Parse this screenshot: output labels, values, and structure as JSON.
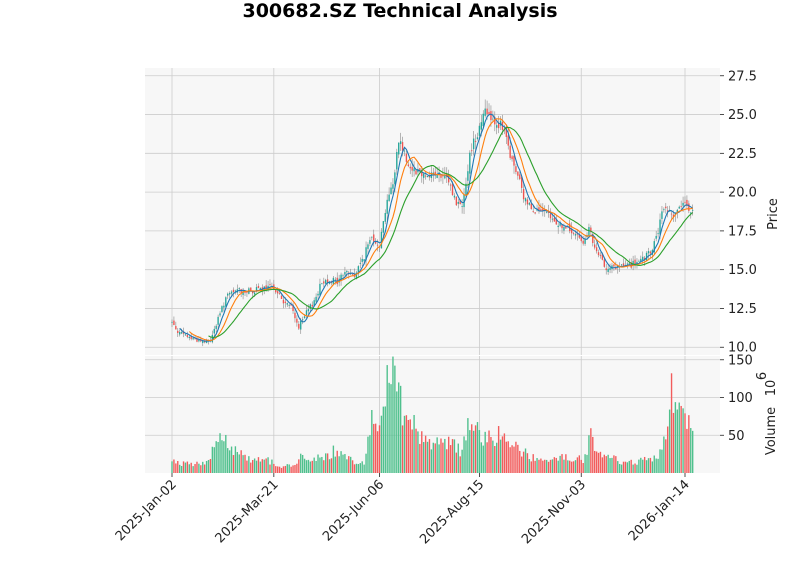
{
  "chart_data": {
    "type": "candlestick",
    "title": "300682.SZ Technical Analysis",
    "colors": {
      "up": "#26a69a",
      "down": "#ef5350",
      "volume_up": "#4fc08d",
      "volume_down": "#f25c5c",
      "ma_short": "#1f77b4",
      "ma_mid": "#ff7f0e",
      "ma_long": "#2ca02c",
      "panel_bg": "#f7f7f7",
      "grid": "#cccccc"
    },
    "price_panel": {
      "ylabel": "Price",
      "ylim": [
        9.5,
        28.0
      ],
      "yticks": [
        10.0,
        12.5,
        15.0,
        17.5,
        20.0,
        22.5,
        25.0,
        27.5
      ],
      "ytick_labels": [
        "10.0",
        "12.5",
        "15.0",
        "17.5",
        "20.0",
        "22.5",
        "25.0",
        "27.5"
      ]
    },
    "volume_panel": {
      "ylabel": "Volume",
      "ylabel_exponent": "6",
      "ylim": [
        0,
        155
      ],
      "yticks": [
        50,
        100,
        150
      ],
      "ytick_labels": [
        "50",
        "100",
        "150"
      ]
    },
    "x_tick_labels": [
      "2025-Jan-02",
      "2025-Mar-21",
      "2025-Jun-06",
      "2025-Aug-15",
      "2025-Nov-03",
      "2026-Jan-14"
    ],
    "x_tick_index": [
      0,
      53,
      108,
      160,
      213,
      267
    ],
    "total_bars": 272,
    "close_keypoints": [
      [
        0,
        11.6
      ],
      [
        4,
        10.9
      ],
      [
        10,
        10.6
      ],
      [
        18,
        10.3
      ],
      [
        20,
        10.5
      ],
      [
        24,
        11.8
      ],
      [
        28,
        13.2
      ],
      [
        34,
        13.7
      ],
      [
        40,
        13.6
      ],
      [
        50,
        13.8
      ],
      [
        53,
        13.9
      ],
      [
        58,
        12.9
      ],
      [
        62,
        12.6
      ],
      [
        66,
        11.3
      ],
      [
        70,
        12.2
      ],
      [
        74,
        13.0
      ],
      [
        78,
        14.2
      ],
      [
        82,
        14.4
      ],
      [
        86,
        14.2
      ],
      [
        90,
        14.9
      ],
      [
        95,
        14.6
      ],
      [
        100,
        15.9
      ],
      [
        104,
        17.2
      ],
      [
        108,
        16.6
      ],
      [
        112,
        19.6
      ],
      [
        115,
        20.4
      ],
      [
        118,
        23.5
      ],
      [
        121,
        22.5
      ],
      [
        124,
        21.6
      ],
      [
        128,
        21.4
      ],
      [
        132,
        21.1
      ],
      [
        136,
        21.2
      ],
      [
        140,
        21.0
      ],
      [
        144,
        20.7
      ],
      [
        148,
        19.3
      ],
      [
        151,
        19.2
      ],
      [
        153,
        20.8
      ],
      [
        156,
        23.0
      ],
      [
        159,
        23.8
      ],
      [
        162,
        25.2
      ],
      [
        165,
        25.1
      ],
      [
        168,
        24.6
      ],
      [
        171,
        24.3
      ],
      [
        174,
        23.4
      ],
      [
        177,
        21.9
      ],
      [
        180,
        21.1
      ],
      [
        183,
        19.6
      ],
      [
        186,
        19.2
      ],
      [
        190,
        18.8
      ],
      [
        194,
        18.6
      ],
      [
        198,
        18.2
      ],
      [
        202,
        17.9
      ],
      [
        206,
        17.6
      ],
      [
        210,
        17.2
      ],
      [
        214,
        16.9
      ],
      [
        217,
        17.6
      ],
      [
        220,
        16.3
      ],
      [
        223,
        15.7
      ],
      [
        226,
        15.2
      ],
      [
        230,
        15.1
      ],
      [
        234,
        15.2
      ],
      [
        238,
        15.3
      ],
      [
        242,
        15.4
      ],
      [
        246,
        15.7
      ],
      [
        250,
        16.3
      ],
      [
        253,
        17.5
      ],
      [
        256,
        19.0
      ],
      [
        260,
        18.6
      ],
      [
        264,
        18.9
      ],
      [
        268,
        19.2
      ],
      [
        271,
        18.7
      ]
    ],
    "volume_keypoints": [
      [
        0,
        14
      ],
      [
        10,
        12
      ],
      [
        18,
        13
      ],
      [
        22,
        40
      ],
      [
        27,
        50
      ],
      [
        32,
        32
      ],
      [
        40,
        20
      ],
      [
        50,
        17
      ],
      [
        56,
        8
      ],
      [
        62,
        10
      ],
      [
        68,
        22
      ],
      [
        76,
        20
      ],
      [
        84,
        28
      ],
      [
        92,
        18
      ],
      [
        100,
        13
      ],
      [
        104,
        72
      ],
      [
        108,
        60
      ],
      [
        111,
        110
      ],
      [
        113,
        150
      ],
      [
        116,
        120
      ],
      [
        120,
        90
      ],
      [
        124,
        75
      ],
      [
        128,
        55
      ],
      [
        134,
        40
      ],
      [
        140,
        38
      ],
      [
        146,
        38
      ],
      [
        150,
        30
      ],
      [
        154,
        60
      ],
      [
        158,
        68
      ],
      [
        162,
        50
      ],
      [
        168,
        38
      ],
      [
        172,
        58
      ],
      [
        176,
        40
      ],
      [
        182,
        28
      ],
      [
        190,
        18
      ],
      [
        200,
        16
      ],
      [
        206,
        24
      ],
      [
        210,
        18
      ],
      [
        214,
        18
      ],
      [
        218,
        50
      ],
      [
        222,
        30
      ],
      [
        226,
        26
      ],
      [
        232,
        16
      ],
      [
        240,
        14
      ],
      [
        248,
        18
      ],
      [
        254,
        28
      ],
      [
        258,
        70
      ],
      [
        260,
        115
      ],
      [
        262,
        75
      ],
      [
        266,
        70
      ],
      [
        271,
        62
      ]
    ],
    "moving_averages": [
      {
        "window": 5
      },
      {
        "window": 10
      },
      {
        "window": 20
      }
    ]
  }
}
